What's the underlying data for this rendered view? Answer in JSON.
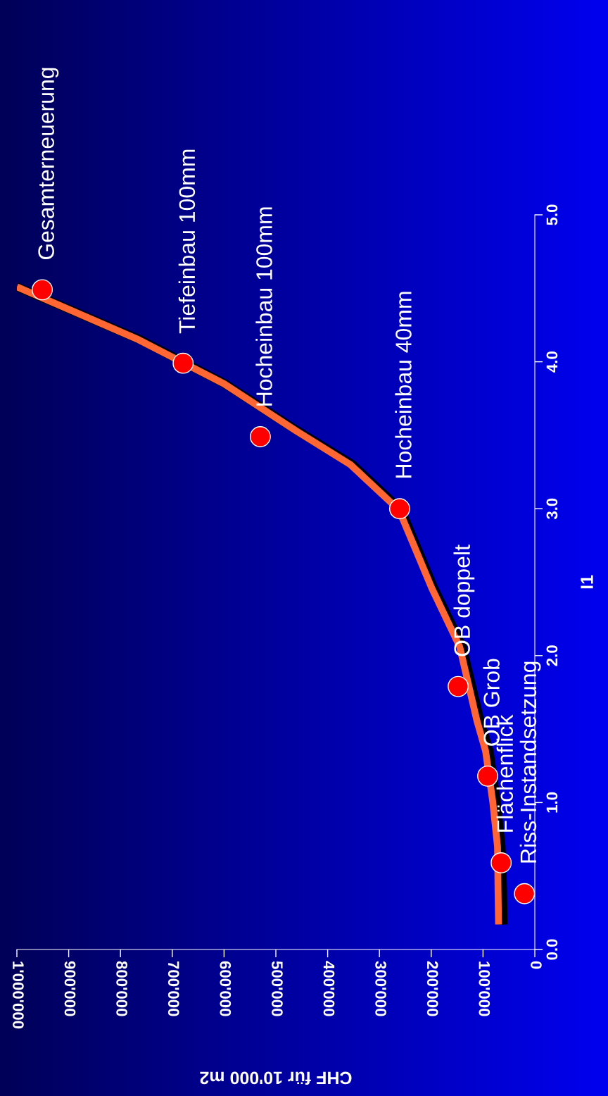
{
  "chart_data": {
    "type": "line",
    "xlabel": "CHF für 10'000 m2",
    "ylabel": "I1",
    "xlim": [
      1000000,
      0
    ],
    "xticks": [
      0,
      {
        "value": 100000,
        "label": "100'000"
      },
      {
        "value": 200000,
        "label": "200'000"
      },
      {
        "value": 300000,
        "label": "300'000"
      },
      {
        "value": 400000,
        "label": "400'000"
      },
      {
        "value": 500000,
        "label": "500'000"
      },
      {
        "value": 600000,
        "label": "600'000"
      },
      {
        "value": 700000,
        "label": "700'000"
      },
      {
        "value": 800000,
        "label": "800'000"
      },
      {
        "value": 900000,
        "label": "900'000"
      },
      {
        "value": 1000000,
        "label": "1'000'000"
      }
    ],
    "ylim": [
      0,
      5
    ],
    "yticks": [
      {
        "value": 0,
        "label": "0.0"
      },
      {
        "value": 1,
        "label": "1.0"
      },
      {
        "value": 2,
        "label": "2.0"
      },
      {
        "value": 3,
        "label": "3.0"
      },
      {
        "value": 4,
        "label": "4.0"
      },
      {
        "value": 5,
        "label": "5.0"
      }
    ],
    "grid": false,
    "series": [
      {
        "color": "#000000",
        "x": [
          61000,
          62000,
          65000,
          74000,
          88000,
          106000,
          140000,
          195000,
          258000,
          352000,
          458000,
          598000,
          762000,
          828000,
          1000000
        ],
        "values": [
          0.17,
          0.4,
          0.7,
          1.0,
          1.35,
          1.56,
          2.06,
          2.46,
          2.99,
          3.3,
          3.53,
          3.85,
          4.15,
          4.25,
          4.51
        ]
      },
      {
        "color": "#ff6633",
        "x": [
          70000,
          71000,
          72000,
          81000,
          95000,
          112000,
          145000,
          199000,
          262000,
          356000,
          461000,
          600000,
          765000,
          830000,
          1000000
        ],
        "values": [
          0.17,
          0.4,
          0.7,
          1.0,
          1.35,
          1.56,
          2.06,
          2.46,
          2.99,
          3.3,
          3.53,
          3.85,
          4.15,
          4.25,
          4.51
        ]
      },
      {
        "type": "scatter",
        "color": "#ff0000",
        "marker": "circle",
        "x": [
          951000,
          679000,
          530000,
          261000,
          148000,
          91000,
          65000,
          20000
        ],
        "values": [
          4.49,
          3.99,
          3.49,
          3.0,
          1.79,
          1.18,
          0.59,
          0.38
        ]
      }
    ],
    "annotations": [
      {
        "text": "Gesamterneuerung",
        "x": 951000,
        "y": 4.49
      },
      {
        "text": "Tiefeinbau 100mm",
        "x": 679000,
        "y": 3.99
      },
      {
        "text": "Hocheinbau 100mm",
        "x": 530000,
        "y": 3.49
      },
      {
        "text": "Hocheinbau 40mm",
        "x": 261000,
        "y": 3.0
      },
      {
        "text": "OB doppelt",
        "x": 148000,
        "y": 1.79
      },
      {
        "text": "OB Grob",
        "x": 91000,
        "y": 1.18
      },
      {
        "text": "Flächenflick",
        "x": 65000,
        "y": 0.59
      },
      {
        "text": "Riss-Instandsetzung",
        "x": 20000,
        "y": 0.38
      }
    ]
  }
}
